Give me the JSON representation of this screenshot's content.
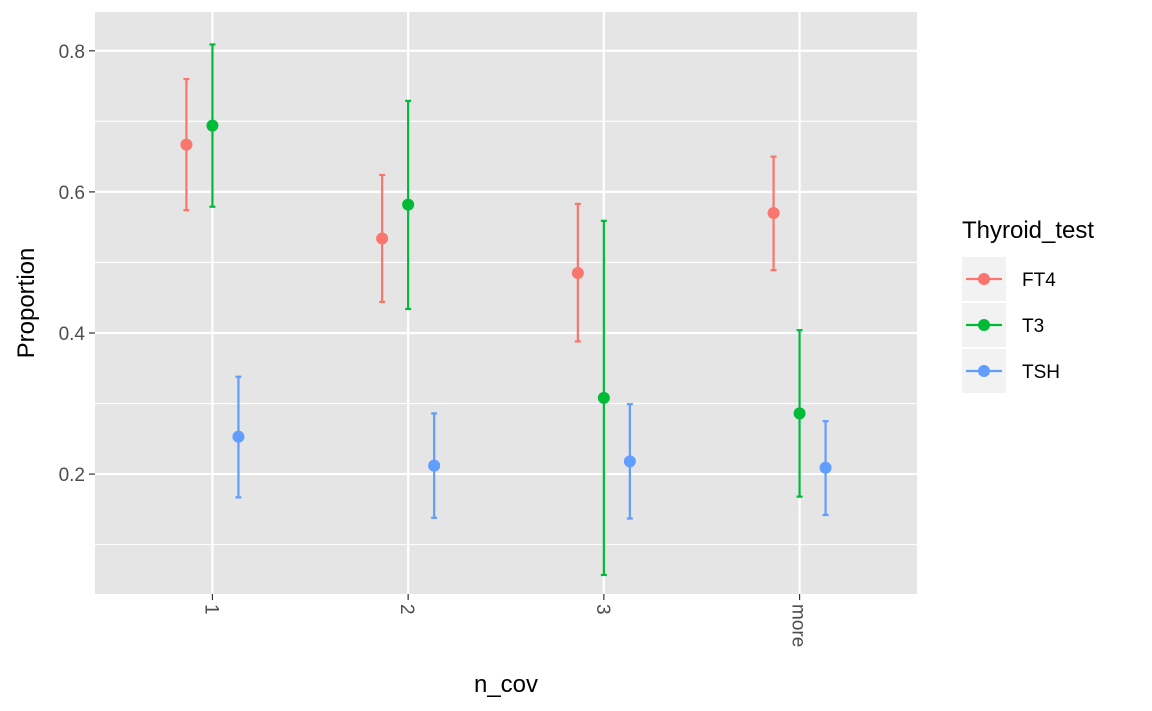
{
  "chart_data": {
    "type": "errorbar",
    "categories": [
      "1",
      "2",
      "3",
      "more"
    ],
    "xlabel": "n_cov",
    "ylabel": "Proportion",
    "ylim": [
      0.03,
      0.855
    ],
    "yticks": [
      0.2,
      0.4,
      0.6,
      0.8
    ],
    "ytick_labels": [
      "0.2",
      "0.4",
      "0.6",
      "0.8"
    ],
    "xtick_rotation": 90,
    "grid": true,
    "panel_background": "#e5e5e5",
    "legend": {
      "title": "Thyroid_test",
      "position": "right"
    },
    "series": [
      {
        "name": "FT4",
        "color": "#f8766d",
        "values": [
          0.667,
          0.534,
          0.485,
          0.57
        ],
        "lower": [
          0.574,
          0.444,
          0.388,
          0.489
        ],
        "upper": [
          0.76,
          0.624,
          0.583,
          0.65
        ]
      },
      {
        "name": "T3",
        "color": "#00ba38",
        "values": [
          0.694,
          0.582,
          0.308,
          0.286
        ],
        "lower": [
          0.579,
          0.434,
          0.057,
          0.168
        ],
        "upper": [
          0.809,
          0.729,
          0.559,
          0.404
        ]
      },
      {
        "name": "TSH",
        "color": "#619cff",
        "values": [
          0.253,
          0.212,
          0.218,
          0.209
        ],
        "lower": [
          0.167,
          0.138,
          0.137,
          0.142
        ],
        "upper": [
          0.338,
          0.286,
          0.299,
          0.275
        ]
      }
    ]
  }
}
